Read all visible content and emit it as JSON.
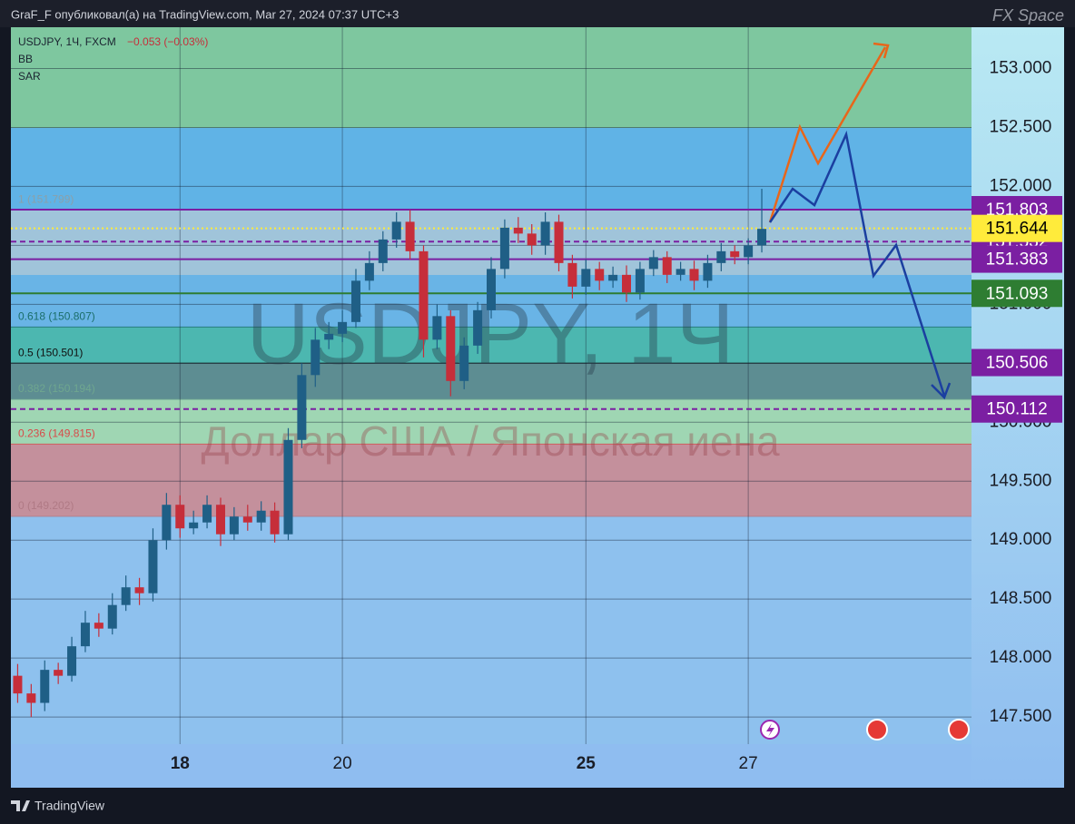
{
  "header": {
    "publisher": "GraF_F опубликовал(а) на TradingView.com, Mar 27, 2024 07:37 UTC+3",
    "brand": "FX Space"
  },
  "footer": {
    "brand": "TradingView"
  },
  "chart_data": {
    "type": "candlestick",
    "symbol": "USDJPY, 1Ч, FXCM",
    "change": "−0.053 (−0.03%)",
    "indicators": [
      "BB",
      "SAR"
    ],
    "watermark": "USDJPY, 1Ч",
    "watermark_subtitle": "Доллар США / Японская иена",
    "up_color": "#1f5f86",
    "down_color": "#c62e3a",
    "x": [
      -48,
      -44,
      -40,
      -36,
      -32,
      -28,
      -24,
      -20,
      -16,
      -12,
      -8,
      -4,
      0,
      4,
      8,
      12,
      16,
      20,
      24,
      28,
      32,
      36,
      40,
      44,
      48,
      52,
      56,
      60,
      64,
      68,
      72,
      76,
      80,
      84,
      88,
      92,
      96,
      100,
      104,
      108,
      112,
      116,
      120,
      124,
      128,
      132,
      136,
      140,
      144,
      148,
      152,
      156,
      160,
      164,
      168,
      172
    ],
    "open": [
      147.85,
      147.7,
      147.62,
      147.9,
      147.85,
      148.1,
      148.3,
      148.25,
      148.45,
      148.6,
      148.55,
      149.0,
      149.3,
      149.1,
      149.15,
      149.3,
      149.05,
      149.2,
      149.15,
      149.25,
      149.05,
      149.85,
      150.4,
      150.7,
      150.75,
      150.85,
      151.2,
      151.35,
      151.55,
      151.7,
      151.45,
      150.7,
      150.9,
      150.35,
      150.65,
      150.95,
      151.3,
      151.65,
      151.6,
      151.5,
      151.7,
      151.35,
      151.15,
      151.3,
      151.2,
      151.25,
      151.1,
      151.3,
      151.4,
      151.25,
      151.3,
      151.2,
      151.35,
      151.45,
      151.4,
      151.5
    ],
    "high": [
      147.95,
      147.78,
      147.98,
      147.96,
      148.18,
      148.4,
      148.38,
      148.55,
      148.7,
      148.68,
      149.1,
      149.4,
      149.38,
      149.25,
      149.38,
      149.36,
      149.28,
      149.3,
      149.33,
      149.32,
      149.95,
      150.5,
      150.8,
      150.85,
      150.95,
      151.3,
      151.45,
      151.62,
      151.78,
      151.8,
      151.5,
      151.0,
      150.95,
      150.72,
      151.02,
      151.4,
      151.72,
      151.74,
      151.68,
      151.78,
      151.76,
      151.42,
      151.38,
      151.36,
      151.32,
      151.33,
      151.36,
      151.46,
      151.45,
      151.36,
      151.37,
      151.42,
      151.52,
      151.5,
      151.56,
      151.98
    ],
    "low": [
      147.62,
      147.5,
      147.55,
      147.78,
      147.8,
      148.05,
      148.18,
      148.2,
      148.4,
      148.45,
      148.48,
      148.92,
      149.02,
      149.05,
      149.1,
      148.95,
      149.0,
      149.08,
      149.08,
      148.98,
      149.0,
      149.78,
      150.3,
      150.62,
      150.68,
      150.8,
      151.12,
      151.28,
      151.48,
      151.38,
      150.55,
      150.62,
      150.22,
      150.28,
      150.58,
      150.88,
      151.22,
      151.52,
      151.42,
      151.42,
      151.28,
      151.05,
      151.08,
      151.12,
      151.14,
      151.02,
      151.04,
      151.24,
      151.18,
      151.2,
      151.12,
      151.14,
      151.28,
      151.34,
      151.34,
      151.44
    ],
    "close": [
      147.7,
      147.62,
      147.9,
      147.85,
      148.1,
      148.3,
      148.25,
      148.45,
      148.6,
      148.55,
      149.0,
      149.3,
      149.1,
      149.15,
      149.3,
      149.05,
      149.2,
      149.15,
      149.25,
      149.05,
      149.85,
      150.4,
      150.7,
      150.75,
      150.85,
      151.2,
      151.35,
      151.55,
      151.7,
      151.45,
      150.7,
      150.9,
      150.35,
      150.65,
      150.95,
      151.3,
      151.65,
      151.6,
      151.5,
      151.7,
      151.35,
      151.15,
      151.3,
      151.2,
      151.25,
      151.1,
      151.3,
      151.4,
      151.25,
      151.3,
      151.2,
      151.35,
      151.45,
      151.4,
      151.5,
      151.64
    ],
    "xlim": [
      -50,
      234
    ],
    "xticks": [
      {
        "value": 0,
        "label": "18",
        "bold": true
      },
      {
        "value": 48,
        "label": "20",
        "bold": false
      },
      {
        "value": 120,
        "label": "25",
        "bold": true
      },
      {
        "value": 168,
        "label": "27",
        "bold": false
      }
    ],
    "ylim": [
      147.27,
      153.35
    ],
    "yticks": [
      {
        "value": 147.5,
        "label": "147.500"
      },
      {
        "value": 148,
        "label": "148.000"
      },
      {
        "value": 148.5,
        "label": "148.500"
      },
      {
        "value": 149,
        "label": "149.000"
      },
      {
        "value": 149.5,
        "label": "149.500"
      },
      {
        "value": 150,
        "label": "150.000"
      },
      {
        "value": 150.5,
        "label": "150.500"
      },
      {
        "value": 151,
        "label": "151.000"
      },
      {
        "value": 151.5,
        "label": "151.500"
      },
      {
        "value": 152,
        "label": "152.000"
      },
      {
        "value": 152.5,
        "label": "152.500"
      },
      {
        "value": 153,
        "label": "153.000"
      }
    ],
    "grid": true,
    "fib_levels": [
      {
        "value": 149.202,
        "label": "0 (149.202)",
        "color": "#b07a85",
        "band_color": "#c4909c"
      },
      {
        "value": 149.815,
        "label": "0.236 (149.815)",
        "color": "#d84a4a",
        "band_color": "#9fd6b3"
      },
      {
        "value": 150.194,
        "label": "0.382 (150.194)",
        "color": "#6fa68f",
        "band_color": "#5d8d92"
      },
      {
        "value": 150.501,
        "label": "0.5 (150.501)",
        "color": "#111111",
        "band_color": "#4cb7b0"
      },
      {
        "value": 150.807,
        "label": "0.618 (150.807)",
        "color": "#1b6e6a",
        "band_color": "#69b4e6"
      },
      {
        "value": 151.799,
        "label": "1 (151.799)",
        "color": "#8aa0aa"
      }
    ],
    "price_lines": [
      {
        "value": 151.532,
        "color": "#7b1fa2",
        "text_color": "#ffffff",
        "line": "dashed"
      },
      {
        "value": 151.383,
        "color": "#7b1fa2",
        "text_color": "#ffffff",
        "line": "solid"
      },
      {
        "value": 151.803,
        "color": "#7b1fa2",
        "text_color": "#ffffff",
        "line": "solid"
      },
      {
        "value": 151.644,
        "color": "#ffeb3b",
        "text_color": "#000000",
        "line": "dotted"
      },
      {
        "value": 151.093,
        "color": "#2e7d32",
        "text_color": "#ffffff",
        "line": "solid"
      },
      {
        "value": 150.506,
        "color": "#7b1fa2",
        "text_color": "#ffffff",
        "line": "none"
      },
      {
        "value": 150.112,
        "color": "#7b1fa2",
        "text_color": "#ffffff",
        "line": "dashed"
      }
    ]
  }
}
